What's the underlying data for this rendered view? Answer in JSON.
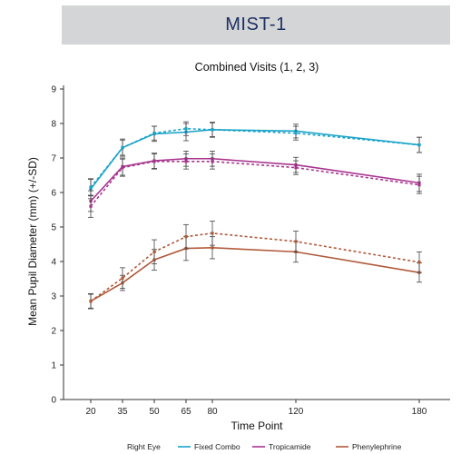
{
  "banner": {
    "title": "MIST-1"
  },
  "chart_data": {
    "type": "line",
    "title": "Combined Visits (1, 2, 3)",
    "xlabel": "Time Point",
    "ylabel": "Mean Pupil Diameter (mm) (+/-SD)",
    "x": [
      20,
      35,
      50,
      65,
      80,
      120,
      180
    ],
    "x_ticks": [
      20,
      35,
      50,
      65,
      80,
      120,
      180
    ],
    "ylim": [
      0,
      9
    ],
    "y_ticks": [
      0,
      1,
      2,
      3,
      4,
      5,
      6,
      7,
      8,
      9
    ],
    "grid": false,
    "legend": {
      "position": "bottom",
      "prefix": "Right Eye",
      "entries": [
        "Fixed Combo",
        "Tropicamide",
        "Phenylephrine"
      ]
    },
    "series": [
      {
        "name": "Fixed Combo",
        "color": "#1aa3c8",
        "style": "solid",
        "values": [
          6.1,
          7.3,
          7.7,
          7.75,
          7.82,
          7.78,
          7.38
        ],
        "sd": [
          0.28,
          0.25,
          0.22,
          0.25,
          0.22,
          0.2,
          0.22
        ]
      },
      {
        "color": "#1aa3c8",
        "style": "dashed",
        "values": [
          6.15,
          7.3,
          7.72,
          7.85,
          7.82,
          7.72,
          7.38
        ],
        "sd": [
          0.25,
          0.22,
          0.2,
          0.2,
          0.2,
          0.2,
          0.22
        ]
      },
      {
        "name": "Tropicamide",
        "color": "#a8338f",
        "style": "solid",
        "values": [
          5.75,
          6.75,
          6.92,
          6.98,
          6.98,
          6.8,
          6.28
        ],
        "sd": [
          0.3,
          0.25,
          0.22,
          0.22,
          0.22,
          0.22,
          0.25
        ]
      },
      {
        "color": "#a8338f",
        "style": "dashed",
        "values": [
          5.6,
          6.72,
          6.9,
          6.9,
          6.9,
          6.72,
          6.22
        ],
        "sd": [
          0.32,
          0.25,
          0.22,
          0.22,
          0.22,
          0.2,
          0.25
        ]
      },
      {
        "name": "Phenylephrine",
        "color": "#b05a3a",
        "style": "solid",
        "values": [
          2.85,
          3.38,
          4.05,
          4.38,
          4.4,
          4.28,
          3.68
        ],
        "sd": [
          0.2,
          0.22,
          0.3,
          0.35,
          0.32,
          0.3,
          0.28
        ]
      },
      {
        "color": "#b05a3a",
        "style": "dashed",
        "values": [
          2.85,
          3.52,
          4.28,
          4.72,
          4.82,
          4.58,
          3.98
        ],
        "sd": [
          0.22,
          0.3,
          0.35,
          0.35,
          0.35,
          0.3,
          0.3
        ]
      }
    ]
  }
}
